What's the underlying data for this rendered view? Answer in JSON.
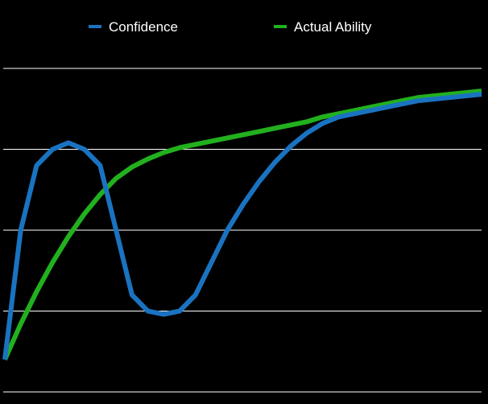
{
  "chart_data": {
    "type": "line",
    "title": "",
    "xlabel": "",
    "ylabel": "",
    "grid": true,
    "legend_position": "top",
    "xlim": [
      0,
      30
    ],
    "ylim": [
      0,
      100
    ],
    "gridlines_y": [
      0,
      25,
      50,
      75,
      100
    ],
    "series": [
      {
        "name": "Confidence",
        "color": "#1a73c0",
        "x": [
          0,
          1,
          2,
          3,
          4,
          5,
          6,
          7,
          8,
          9,
          10,
          11,
          12,
          13,
          14,
          15,
          16,
          17,
          18,
          19,
          20,
          21,
          22,
          23,
          24,
          25,
          26,
          27,
          28,
          29,
          30
        ],
        "y": [
          10,
          50,
          70,
          75,
          77,
          75,
          70,
          50,
          30,
          25,
          24,
          25,
          30,
          40,
          50,
          58,
          65,
          71,
          76,
          80,
          83,
          85,
          86,
          87,
          88,
          89,
          90,
          90.5,
          91,
          91.5,
          92
        ]
      },
      {
        "name": "Actual Ability",
        "color": "#22b01e",
        "x": [
          0,
          1,
          2,
          3,
          4,
          5,
          6,
          7,
          8,
          9,
          10,
          11,
          12,
          13,
          14,
          15,
          16,
          17,
          18,
          19,
          20,
          21,
          22,
          23,
          24,
          25,
          26,
          27,
          28,
          29,
          30
        ],
        "y": [
          10,
          21,
          31,
          40,
          48,
          55,
          61,
          66,
          69.5,
          72,
          74,
          75.5,
          76.5,
          77.5,
          78.5,
          79.5,
          80.5,
          81.5,
          82.5,
          83.5,
          85,
          86,
          87,
          88,
          89,
          90,
          91,
          91.5,
          92,
          92.5,
          93
        ]
      }
    ]
  }
}
